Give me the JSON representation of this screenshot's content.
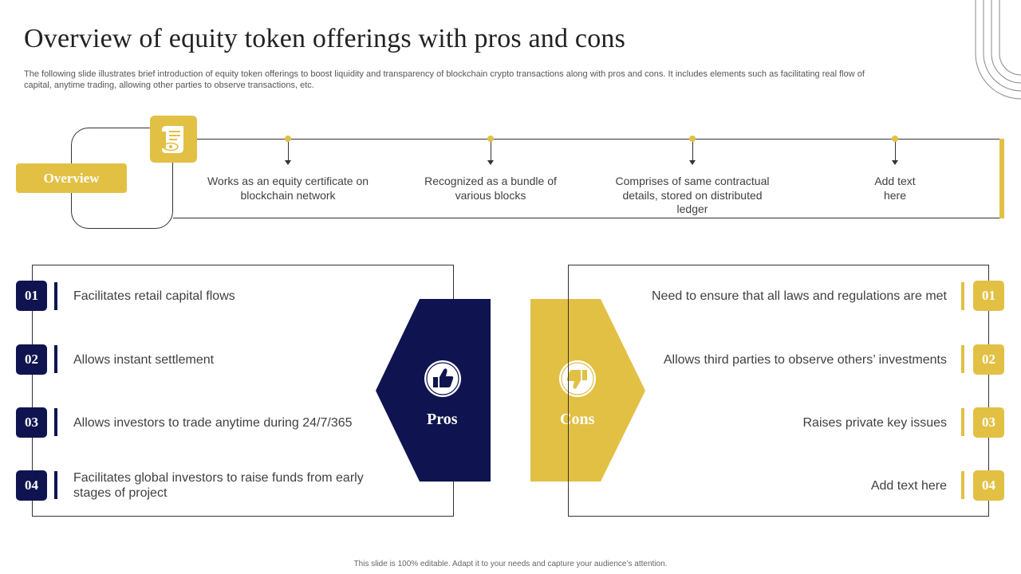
{
  "title": "Overview of equity token offerings with pros and cons",
  "subtitle": "The following slide illustrates brief introduction of equity token offerings to boost liquidity and transparency of blockchain crypto transactions along with pros and cons. It includes elements such as facilitating real flow of capital, anytime trading, allowing other parties to observe transactions, etc.",
  "overview": {
    "label": "Overview",
    "icon": "scroll-eye-icon",
    "points": [
      "Works as an equity certificate on blockchain network",
      "Recognized as a bundle of various blocks",
      "Comprises of same contractual details, stored on distributed ledger",
      "Add text here"
    ]
  },
  "pros": {
    "label": "Pros",
    "icon": "thumbs-up-icon",
    "items": [
      {
        "num": "01",
        "text": "Facilitates retail capital flows"
      },
      {
        "num": "02",
        "text": "Allows instant settlement"
      },
      {
        "num": "03",
        "text": "Allows investors to trade anytime during 24/7/365"
      },
      {
        "num": "04",
        "text": "Facilitates global investors to raise funds from early stages of project"
      }
    ]
  },
  "cons": {
    "label": "Cons",
    "icon": "thumbs-down-icon",
    "items": [
      {
        "num": "01",
        "text": "Need to ensure that all laws and regulations are met"
      },
      {
        "num": "02",
        "text": "Allows third parties to observe others’ investments"
      },
      {
        "num": "03",
        "text": "Raises private key issues"
      },
      {
        "num": "04",
        "text": "Add text here"
      }
    ]
  },
  "footer": "This slide is 100% editable. Adapt it to your needs and capture your audience’s attention.",
  "colors": {
    "navy": "#0f1450",
    "gold": "#e2c044"
  }
}
